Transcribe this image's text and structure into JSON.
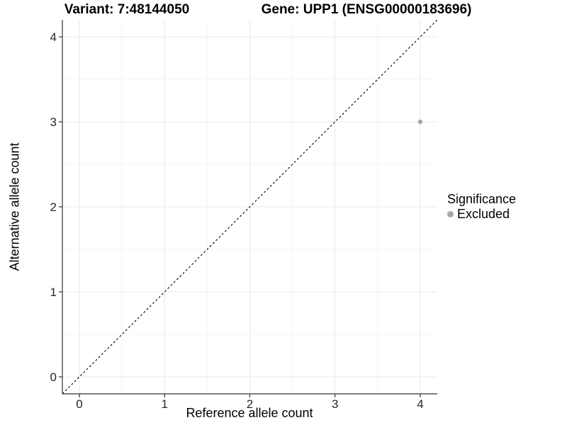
{
  "header": {
    "title_left": "Variant: 7:48144050",
    "title_right": "Gene: UPP1 (ENSG00000183696)"
  },
  "axes": {
    "xlabel": "Reference allele count",
    "ylabel": "Alternative allele count"
  },
  "legend": {
    "title": "Significance",
    "items": [
      {
        "label": "Excluded",
        "color": "#a8a8a8",
        "marker": "circle-icon"
      }
    ]
  },
  "chart_data": {
    "type": "scatter",
    "title_left": "Variant: 7:48144050",
    "title_right": "Gene: UPP1 (ENSG00000183696)",
    "xlabel": "Reference allele count",
    "ylabel": "Alternative allele count",
    "xlim": [
      -0.2,
      4.2
    ],
    "ylim": [
      -0.2,
      4.2
    ],
    "x_ticks": [
      0,
      1,
      2,
      3,
      4
    ],
    "y_ticks": [
      0,
      1,
      2,
      3,
      4
    ],
    "x_tick_labels": [
      "0",
      "1",
      "2",
      "3",
      "4"
    ],
    "y_tick_labels": [
      "0",
      "1",
      "2",
      "3",
      "4"
    ],
    "x_minor_ticks": [
      0.5,
      1.5,
      2.5,
      3.5
    ],
    "y_minor_ticks": [
      0.5,
      1.5,
      2.5,
      3.5
    ],
    "grid": true,
    "legend_position": "right",
    "reference_line": {
      "type": "identity",
      "style": "dashed",
      "color": "#000000"
    },
    "series": [
      {
        "name": "Excluded",
        "color": "#a8a8a8",
        "points": [
          {
            "x": 4,
            "y": 3
          }
        ]
      }
    ],
    "colors": {
      "background": "#ffffff",
      "grid_major": "#e9e9e9",
      "grid_minor": "#f2f2f2",
      "axis_line": "#333333",
      "tick_label": "#262626"
    }
  }
}
